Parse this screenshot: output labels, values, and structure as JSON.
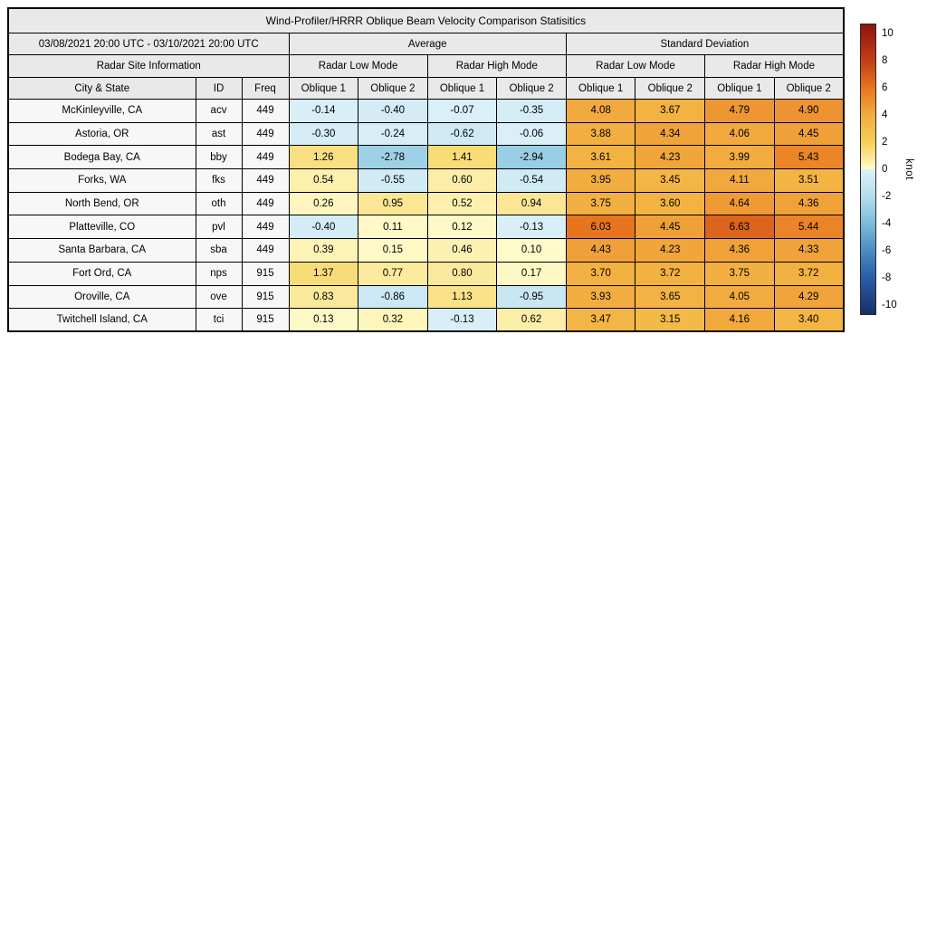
{
  "title": "Wind-Profiler/HRRR Oblique Beam Velocity Comparison Statisitics",
  "table": {
    "date_range": "03/08/2021 20:00 UTC - 03/10/2021 20:00 UTC",
    "avg_header": "Average",
    "std_header": "Standard Deviation",
    "site_info_header": "Radar Site Information",
    "mode_headers": [
      "Radar Low Mode",
      "Radar High Mode",
      "Radar Low Mode",
      "Radar High Mode"
    ],
    "columns": {
      "city": "City & State",
      "id": "ID",
      "freq": "Freq",
      "oblique": [
        "Oblique 1",
        "Oblique 2",
        "Oblique 1",
        "Oblique 2",
        "Oblique 1",
        "Oblique 2",
        "Oblique 1",
        "Oblique 2"
      ]
    }
  },
  "chart_data": {
    "type": "heatmap",
    "title": "Wind-Profiler/HRRR Oblique Beam Velocity Comparison Statisitics",
    "period": "03/08/2021 20:00 UTC - 03/10/2021 20:00 UTC",
    "unit": "knot",
    "value_range": [
      -10,
      10
    ],
    "value_columns": [
      "average_radar_low_mode_oblique1",
      "average_radar_low_mode_oblique2",
      "average_radar_high_mode_oblique1",
      "average_radar_high_mode_oblique2",
      "stddev_radar_low_mode_oblique1",
      "stddev_radar_low_mode_oblique2",
      "stddev_radar_high_mode_oblique1",
      "stddev_radar_high_mode_oblique2"
    ],
    "rows": [
      {
        "city": "McKinleyville, CA",
        "id": "acv",
        "freq": "449",
        "values": [
          "-0.14",
          "-0.40",
          "-0.07",
          "-0.35",
          "4.08",
          "3.67",
          "4.79",
          "4.90"
        ]
      },
      {
        "city": "Astoria, OR",
        "id": "ast",
        "freq": "449",
        "values": [
          "-0.30",
          "-0.24",
          "-0.62",
          "-0.06",
          "3.88",
          "4.34",
          "4.06",
          "4.45"
        ]
      },
      {
        "city": "Bodega Bay, CA",
        "id": "bby",
        "freq": "449",
        "values": [
          "1.26",
          "-2.78",
          "1.41",
          "-2.94",
          "3.61",
          "4.23",
          "3.99",
          "5.43"
        ]
      },
      {
        "city": "Forks, WA",
        "id": "fks",
        "freq": "449",
        "values": [
          "0.54",
          "-0.55",
          "0.60",
          "-0.54",
          "3.95",
          "3.45",
          "4.11",
          "3.51"
        ]
      },
      {
        "city": "North Bend, OR",
        "id": "oth",
        "freq": "449",
        "values": [
          "0.26",
          "0.95",
          "0.52",
          "0.94",
          "3.75",
          "3.60",
          "4.64",
          "4.36"
        ]
      },
      {
        "city": "Platteville, CO",
        "id": "pvl",
        "freq": "449",
        "values": [
          "-0.40",
          "0.11",
          "0.12",
          "-0.13",
          "6.03",
          "4.45",
          "6.63",
          "5.44"
        ]
      },
      {
        "city": "Santa Barbara, CA",
        "id": "sba",
        "freq": "449",
        "values": [
          "0.39",
          "0.15",
          "0.46",
          "0.10",
          "4.43",
          "4.23",
          "4.36",
          "4.33"
        ]
      },
      {
        "city": "Fort Ord, CA",
        "id": "nps",
        "freq": "915",
        "values": [
          "1.37",
          "0.77",
          "0.80",
          "0.17",
          "3.70",
          "3.72",
          "3.75",
          "3.72"
        ]
      },
      {
        "city": "Oroville, CA",
        "id": "ove",
        "freq": "915",
        "values": [
          "0.83",
          "-0.86",
          "1.13",
          "-0.95",
          "3.93",
          "3.65",
          "4.05",
          "4.29"
        ]
      },
      {
        "city": "Twitchell Island, CA",
        "id": "tci",
        "freq": "915",
        "values": [
          "0.13",
          "0.32",
          "-0.13",
          "0.62",
          "3.47",
          "3.15",
          "4.16",
          "3.40"
        ]
      }
    ]
  },
  "colorbar": {
    "label": "knot",
    "ticks": [
      "10",
      "8",
      "6",
      "4",
      "2",
      "0",
      "-2",
      "-4",
      "-6",
      "-8",
      "-10"
    ],
    "tick_values": [
      10,
      8,
      6,
      4,
      2,
      0,
      -2,
      -4,
      -6,
      -8,
      -10
    ],
    "vmax_ext": 10.7,
    "vmin_ext": -10.7,
    "ext_top_color": "#8A180D",
    "ext_bottom_color": "#17315E"
  },
  "colormap": {
    "positive_stops": [
      {
        "v": 0,
        "c": "#FFFCCE"
      },
      {
        "v": 2,
        "c": "#F6CE54"
      },
      {
        "v": 4,
        "c": "#F2AC3F"
      },
      {
        "v": 6,
        "c": "#E8751F"
      },
      {
        "v": 8,
        "c": "#C23F19"
      },
      {
        "v": 10,
        "c": "#9B1E10"
      }
    ],
    "negative_stops": [
      {
        "v": -10,
        "c": "#1C3B78"
      },
      {
        "v": -8,
        "c": "#2A5CA8"
      },
      {
        "v": -6,
        "c": "#4A8CC2"
      },
      {
        "v": -4,
        "c": "#7CBBDA"
      },
      {
        "v": -2,
        "c": "#B4DEEE"
      },
      {
        "v": 0,
        "c": "#DCF0F8"
      }
    ]
  },
  "colors": {
    "header_bg": "#E9E9E9",
    "site_cell_bg": "#F7F7F7",
    "border": "#000000",
    "background": "#FFFFFF"
  }
}
